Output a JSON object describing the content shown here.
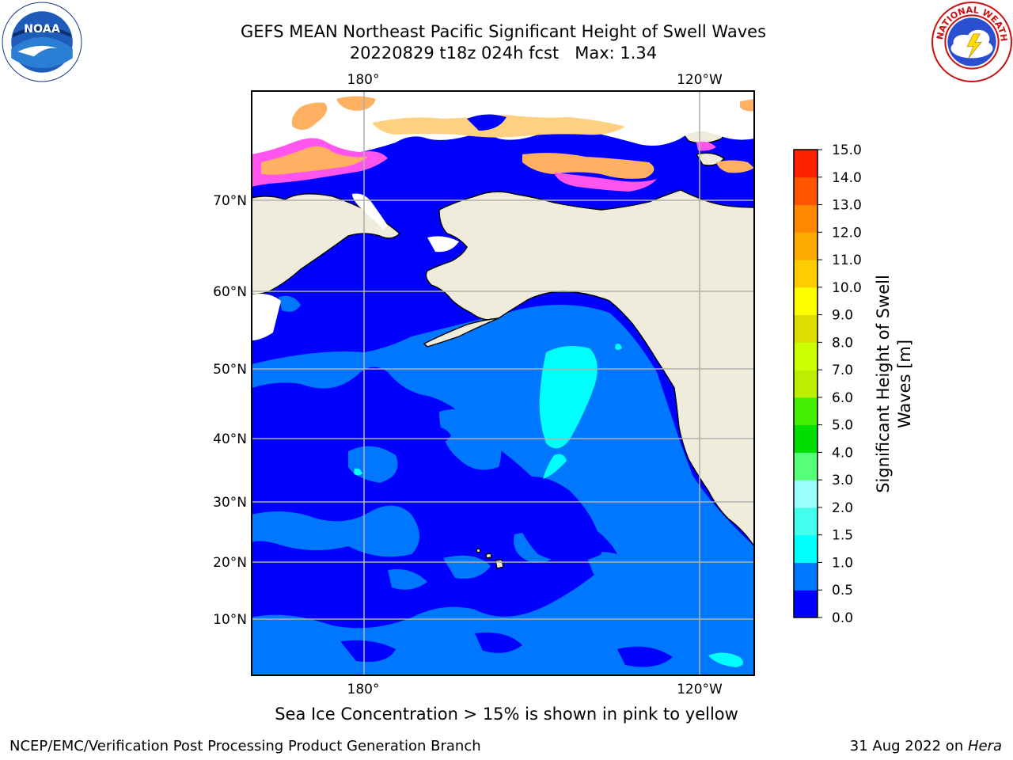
{
  "header": {
    "title_line1": "GEFS MEAN Northeast Pacific Significant Height of Swell Waves",
    "title_line2": "20220829 t18z 024h fcst   Max: 1.34"
  },
  "logos": {
    "left": {
      "icon": "noaa-logo",
      "text": "NOAA",
      "ring_text": "NATIONAL OCEANIC AND ATMOSPHERIC ADMINISTRATION · U.S. DEPARTMENT OF COMMERCE"
    },
    "right": {
      "icon": "national-weather-service-logo",
      "ring_text": "NATIONAL WEATHER SERVICE"
    }
  },
  "map": {
    "lon_labels_top": [
      "180°",
      "120°W"
    ],
    "lon_labels_bottom": [
      "180°",
      "120°W"
    ],
    "lat_labels": [
      "70°N",
      "60°N",
      "50°N",
      "40°N",
      "30°N",
      "20°N",
      "10°N"
    ],
    "land_color": "#efecdb",
    "ocean_base_color": "#0000ff"
  },
  "colorbar": {
    "title_line1": "Significant Height of Swell",
    "title_line2": "Waves [m]",
    "ticks": [
      "0.0",
      "0.5",
      "1.0",
      "1.5",
      "2.0",
      "3.0",
      "4.0",
      "5.0",
      "6.0",
      "7.0",
      "8.0",
      "9.0",
      "10.0",
      "11.0",
      "12.0",
      "13.0",
      "14.0",
      "15.0"
    ],
    "colors": [
      "#0000ff",
      "#0077ff",
      "#00ffff",
      "#44ffee",
      "#99ffff",
      "#55ff77",
      "#00dd00",
      "#44ee00",
      "#bbee00",
      "#ccff00",
      "#dddd00",
      "#ffff00",
      "#ffcc00",
      "#ffaa00",
      "#ff8800",
      "#ff5500",
      "#ff2200",
      "#ff0000"
    ]
  },
  "caption": "Sea Ice Concentration > 15% is shown in pink to yellow",
  "footer": {
    "left": "NCEP/EMC/Verification Post Processing Product Generation Branch",
    "right_date": "31 Aug 2022 on ",
    "right_host": "Hera"
  }
}
